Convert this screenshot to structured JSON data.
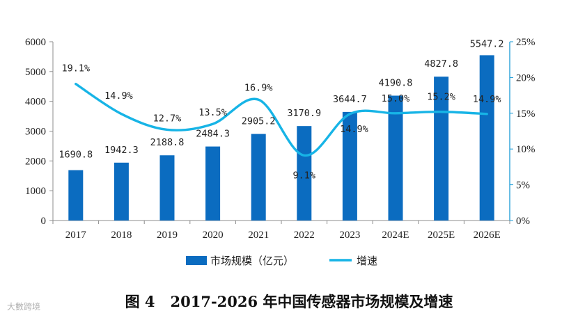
{
  "chart_data": {
    "type": "bar",
    "categories": [
      "2017",
      "2018",
      "2019",
      "2020",
      "2021",
      "2022",
      "2023",
      "2024E",
      "2025E",
      "2026E"
    ],
    "series": [
      {
        "name": "市场规模（亿元）",
        "kind": "bar",
        "axis": "left",
        "values": [
          1690.8,
          1942.3,
          2188.8,
          2484.3,
          2905.2,
          3170.9,
          3644.7,
          4190.8,
          4827.8,
          5547.2
        ],
        "labels": [
          "1690.8",
          "1942.3",
          "2188.8",
          "2484.3",
          "2905.2",
          "3170.9",
          "3644.7",
          "4190.8",
          "4827.8",
          "5547.2"
        ]
      },
      {
        "name": "增速",
        "kind": "line",
        "axis": "right",
        "values": [
          19.1,
          14.9,
          12.7,
          13.5,
          16.9,
          9.1,
          14.9,
          15.0,
          15.2,
          14.9
        ],
        "labels": [
          "19.1%",
          "14.9%",
          "12.7%",
          "13.5%",
          "16.9%",
          "9.1%",
          "14.9%",
          "15.0%",
          "15.2%",
          "14.9%"
        ]
      }
    ],
    "y_left": {
      "min": 0,
      "max": 6000,
      "ticks": [
        "0",
        "1000",
        "2000",
        "3000",
        "4000",
        "5000",
        "6000"
      ]
    },
    "y_right": {
      "min": 0,
      "max": 25,
      "ticks": [
        "0%",
        "5%",
        "10%",
        "15%",
        "20%",
        "25%"
      ]
    },
    "legend": {
      "position": "bottom",
      "items": [
        "市场规模（亿元）",
        "增速"
      ]
    },
    "colors": {
      "bar": "#0b6cc0",
      "line": "#17b4e6",
      "axis_right": "#1a9bd7"
    }
  },
  "caption": {
    "figure_no": "图 4",
    "title": "2017-2026 年中国传感器市场规模及增速"
  },
  "watermark": "大數跨境"
}
